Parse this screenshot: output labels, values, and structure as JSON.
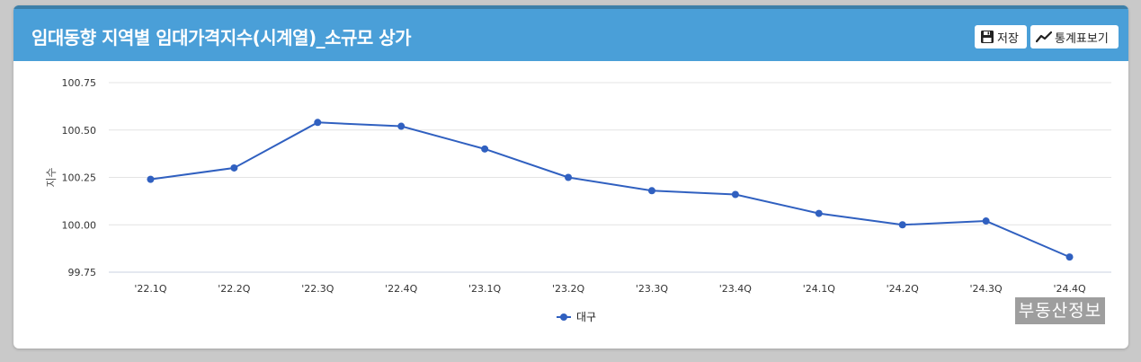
{
  "header": {
    "title": "임대동향 지역별 임대가격지수(시계열)_소규모 상가",
    "save_label": "저장",
    "table_label": "통계표보기"
  },
  "colors": {
    "header_bg": "#4a9fd8",
    "series": "#3060c0"
  },
  "icons": {
    "save": "floppy-disk-icon",
    "table": "trend-line-icon"
  },
  "watermark": "부동산정보",
  "chart_data": {
    "type": "line",
    "title": "",
    "xlabel": "",
    "ylabel": "지수",
    "categories": [
      "'22.1Q",
      "'22.2Q",
      "'22.3Q",
      "'22.4Q",
      "'23.1Q",
      "'23.2Q",
      "'23.3Q",
      "'23.4Q",
      "'24.1Q",
      "'24.2Q",
      "'24.3Q",
      "'24.4Q"
    ],
    "series": [
      {
        "name": "대구",
        "values": [
          100.24,
          100.3,
          100.54,
          100.52,
          100.4,
          100.25,
          100.18,
          100.16,
          100.06,
          100.0,
          100.02,
          99.83
        ]
      }
    ],
    "ylim": [
      99.75,
      100.75
    ],
    "yticks": [
      "100.75",
      "100.50",
      "100.25",
      "100.00",
      "99.75"
    ],
    "grid": true,
    "legend": "bottom"
  }
}
